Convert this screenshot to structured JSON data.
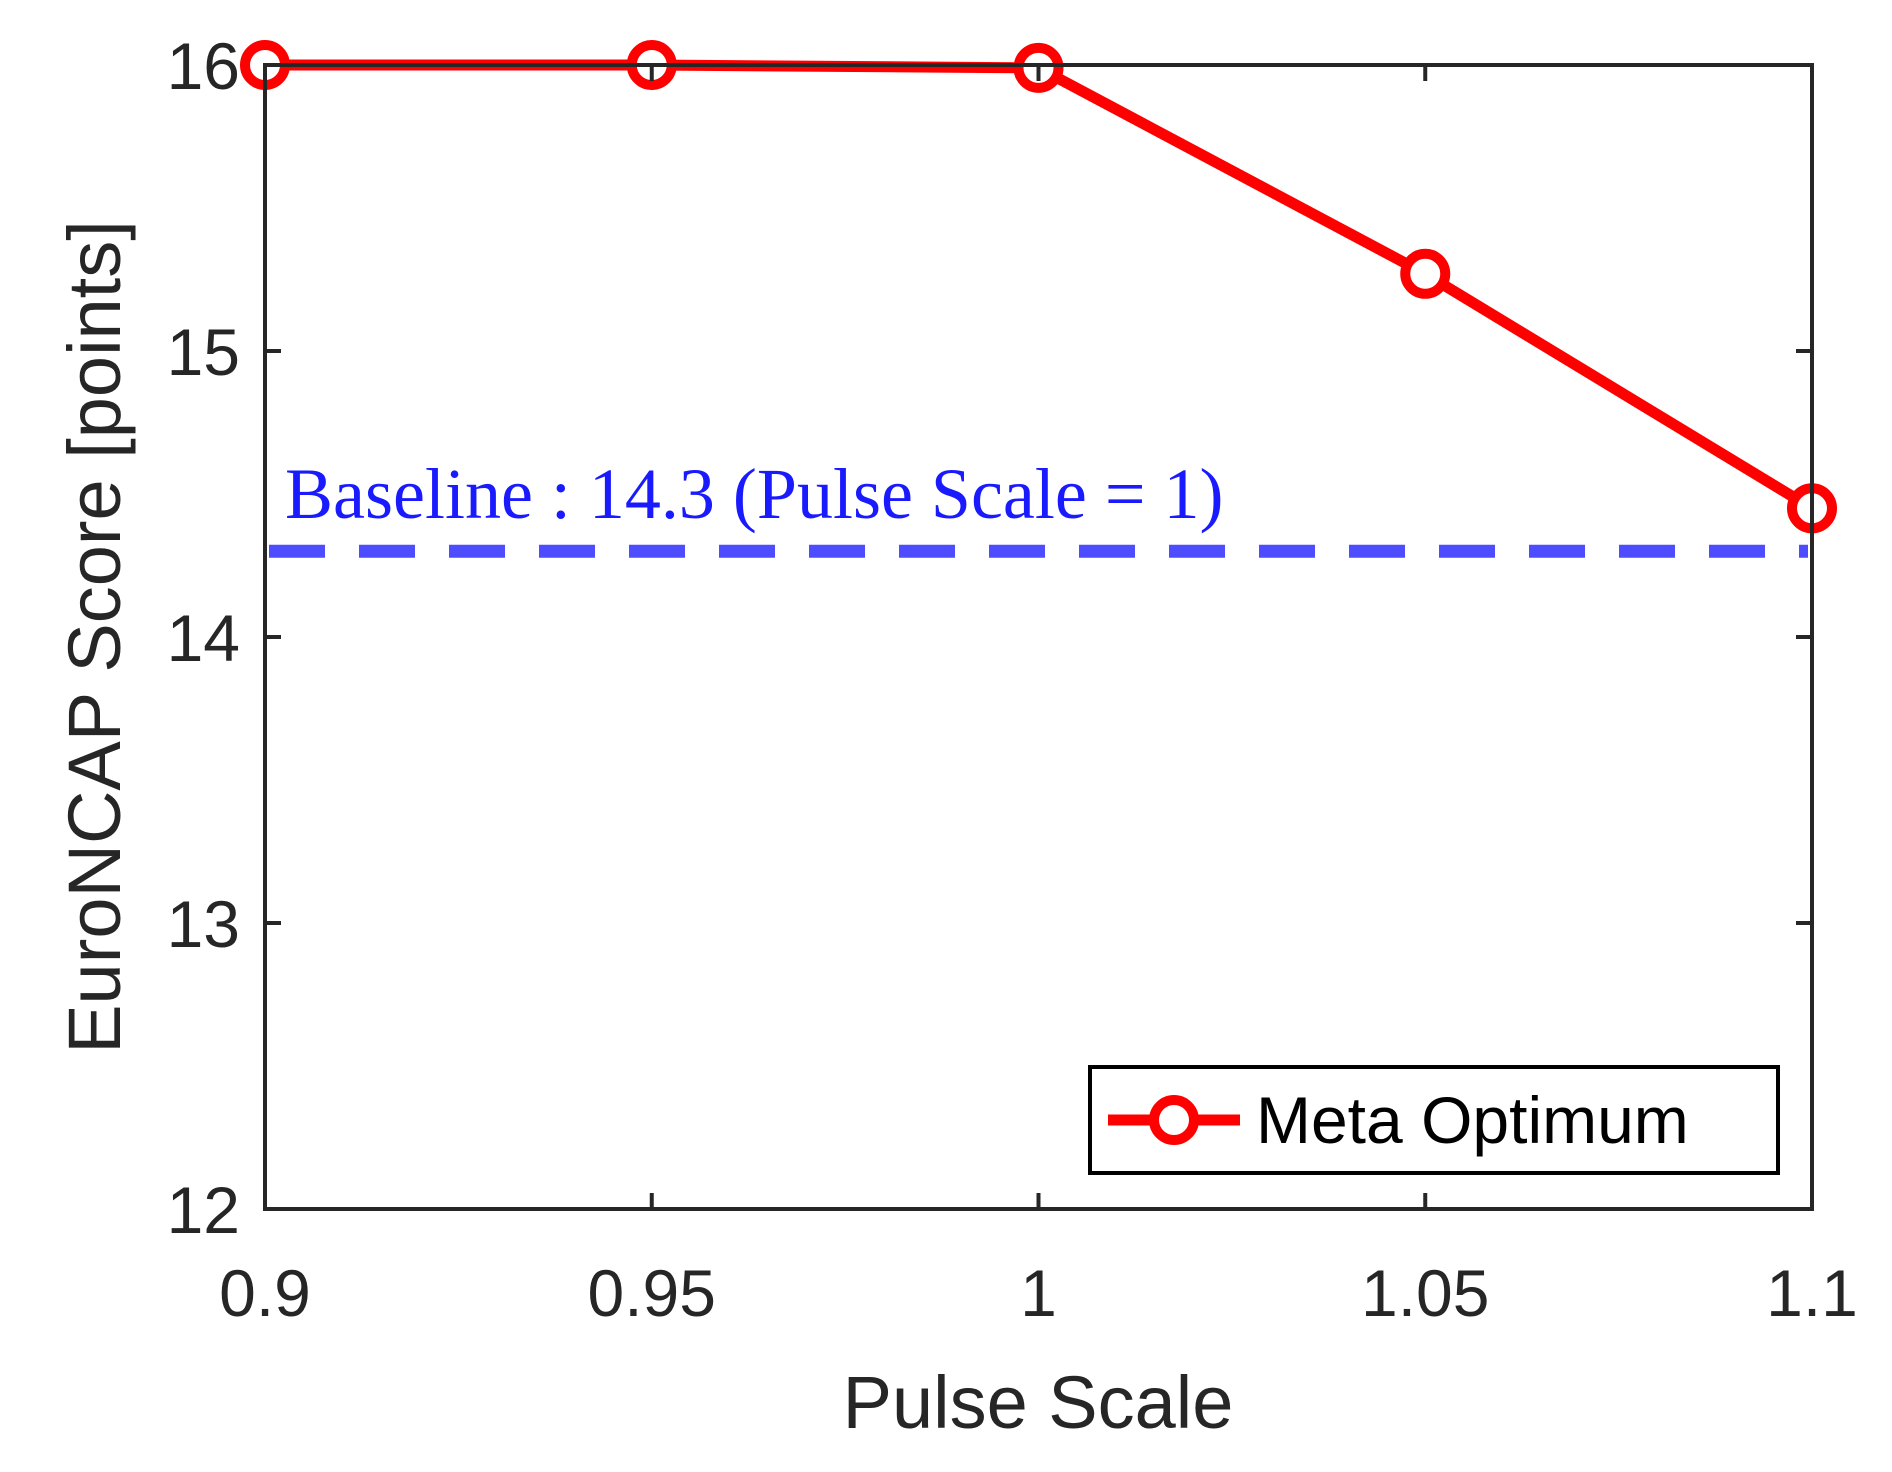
{
  "chart_data": {
    "type": "line",
    "title": "",
    "xlabel": "Pulse Scale",
    "ylabel": "EuroNCAP Score [points]",
    "xlim": [
      0.9,
      1.1
    ],
    "ylim": [
      12,
      16
    ],
    "grid": false,
    "x": [
      0.9,
      0.95,
      1.0,
      1.05,
      1.1
    ],
    "xtick_values": [
      0.9,
      0.95,
      1.0,
      1.05,
      1.1
    ],
    "xtick_labels": [
      "0.9",
      "0.95",
      "1",
      "1.05",
      "1.1"
    ],
    "ytick_values": [
      12,
      13,
      14,
      15,
      16
    ],
    "ytick_labels": [
      "12",
      "13",
      "14",
      "15",
      "16"
    ],
    "series": [
      {
        "name": "Meta Optimum",
        "values": [
          16.0,
          16.0,
          15.99,
          15.27,
          14.45
        ],
        "color": "#ff0000",
        "marker": "circle"
      }
    ],
    "reference_line": {
      "value": 14.3,
      "color": "#4d4dff",
      "style": "dashed",
      "label": "Baseline : 14.3 (Pulse Scale = 1)",
      "label_color": "#1a1aff"
    },
    "legend": {
      "position": "bottom-right",
      "entries": [
        "Meta Optimum"
      ]
    }
  }
}
